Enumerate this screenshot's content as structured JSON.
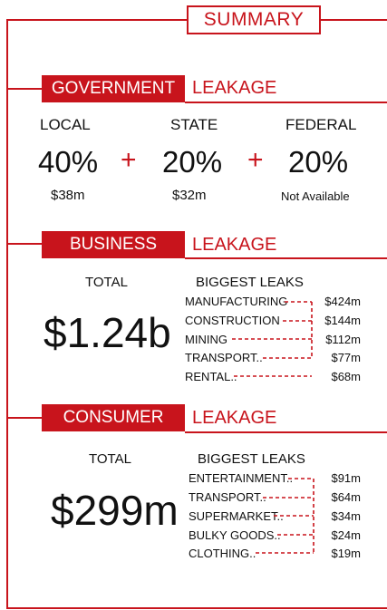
{
  "summary_title": "SUMMARY",
  "government": {
    "label": "GOVERNMENT",
    "leakage_word": "LEAKAGE",
    "columns": [
      {
        "name": "LOCAL",
        "percent": "40%",
        "amount": "$38m"
      },
      {
        "name": "STATE",
        "percent": "20%",
        "amount": "$32m"
      },
      {
        "name": "FEDERAL",
        "percent": "20%",
        "amount": "Not Available"
      }
    ],
    "plus": "+"
  },
  "business": {
    "label": "BUSINESS",
    "leakage_word": "LEAKAGE",
    "total_label": "TOTAL",
    "total_value": "$1.24b",
    "leaks_label": "BIGGEST LEAKS",
    "leaks": [
      {
        "name": "MANUFACTURING",
        "value": "$424m"
      },
      {
        "name": "CONSTRUCTION",
        "value": "$144m"
      },
      {
        "name": "MINING",
        "value": "$112m"
      },
      {
        "name": "TRANSPORT..",
        "value": "$77m"
      },
      {
        "name": "RENTAL..",
        "value": "$68m"
      }
    ]
  },
  "consumer": {
    "label": "CONSUMER",
    "leakage_word": "LEAKAGE",
    "total_label": "TOTAL",
    "total_value": "$299m",
    "leaks_label": "BIGGEST LEAKS",
    "leaks": [
      {
        "name": "ENTERTAINMENT..",
        "value": "$91m"
      },
      {
        "name": "TRANSPORT..",
        "value": "$64m"
      },
      {
        "name": "SUPERMARKET..",
        "value": "$34m"
      },
      {
        "name": "BULKY GOODS..",
        "value": "$24m"
      },
      {
        "name": "CLOTHING..",
        "value": "$19m"
      }
    ]
  },
  "colors": {
    "accent": "#c8141c"
  }
}
